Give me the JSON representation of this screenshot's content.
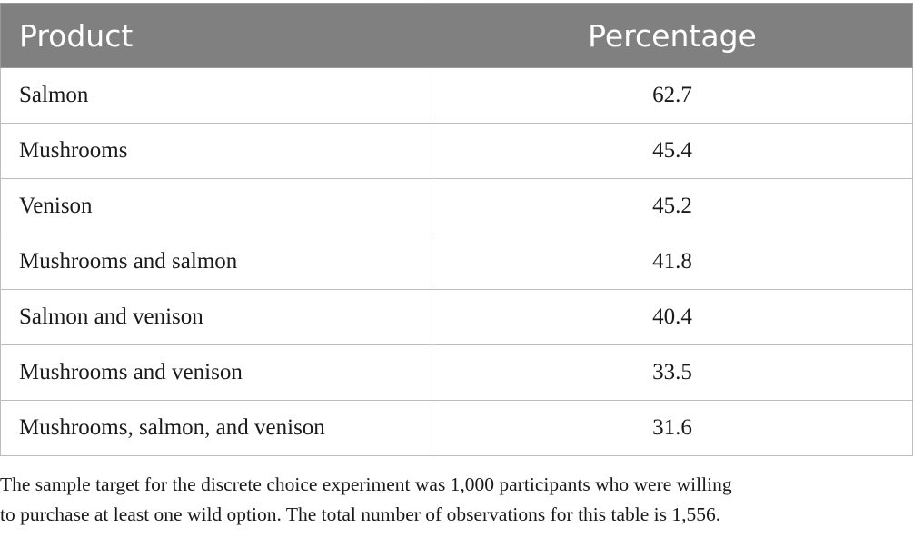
{
  "table": {
    "headers": {
      "product": "Product",
      "percentage": "Percentage"
    },
    "rows": [
      {
        "product": "Salmon",
        "percentage": "62.7"
      },
      {
        "product": "Mushrooms",
        "percentage": "45.4"
      },
      {
        "product": "Venison",
        "percentage": "45.2"
      },
      {
        "product": "Mushrooms and salmon",
        "percentage": "41.8"
      },
      {
        "product": "Salmon and venison",
        "percentage": "40.4"
      },
      {
        "product": "Mushrooms and venison",
        "percentage": "33.5"
      },
      {
        "product": "Mushrooms, salmon, and venison",
        "percentage": "31.6"
      }
    ]
  },
  "footnote": {
    "line1": "The sample target for the discrete choice experiment was 1,000 participants who were willing",
    "line2": "to purchase at least one wild option. The total number of observations for this table is 1,556."
  },
  "colors": {
    "header_background": "#808080",
    "header_text": "#ffffff",
    "grid_lines": "#bdbdbd"
  }
}
